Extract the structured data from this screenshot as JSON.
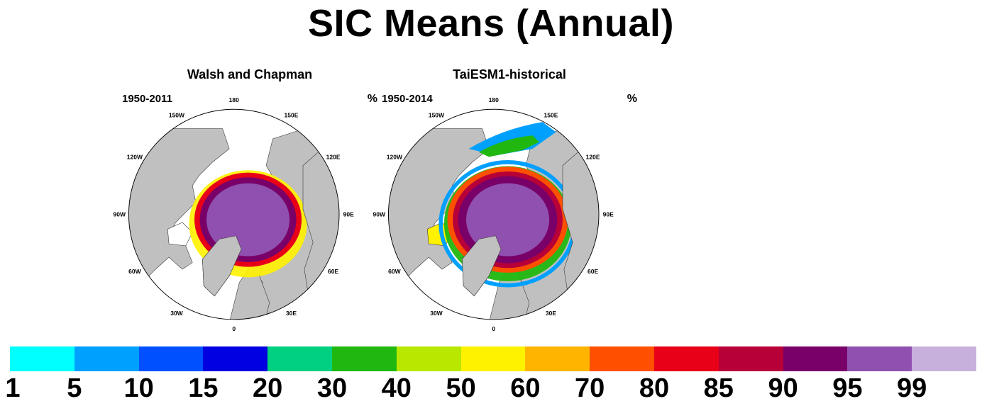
{
  "title": "SIC Means (Annual)",
  "unit": "%",
  "panels": [
    {
      "title": "Walsh and Chapman",
      "period": "1950-2011"
    },
    {
      "title": "TaiESM1-historical",
      "period": "1950-2014"
    }
  ],
  "longitude_labels": [
    "180",
    "150E",
    "120E",
    "90E",
    "60E",
    "30E",
    "0",
    "30W",
    "60W",
    "90W",
    "120W",
    "150W"
  ],
  "colorbar": {
    "colors": [
      "#00ffff",
      "#00a0ff",
      "#0050ff",
      "#0000e0",
      "#00d080",
      "#20b810",
      "#b8e800",
      "#fff200",
      "#ffb400",
      "#ff5000",
      "#e80018",
      "#b80038",
      "#780068",
      "#9050b0",
      "#c8b0dc"
    ],
    "labels": [
      "1",
      "5",
      "10",
      "15",
      "20",
      "30",
      "40",
      "50",
      "60",
      "70",
      "80",
      "85",
      "90",
      "95",
      "99"
    ]
  },
  "map_colors": {
    "land": "#c0c0c0",
    "ocean": "#ffffff",
    "outline": "#000000"
  }
}
